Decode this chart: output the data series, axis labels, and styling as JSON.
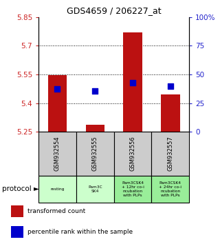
{
  "title": "GDS4659 / 206227_at",
  "samples": [
    "GSM932554",
    "GSM932555",
    "GSM932556",
    "GSM932557"
  ],
  "transformed_counts": [
    5.548,
    5.285,
    5.77,
    5.445
  ],
  "percentile_ranks": [
    5.475,
    5.465,
    5.505,
    5.49
  ],
  "bar_base": 5.25,
  "ylim": [
    5.25,
    5.85
  ],
  "yticks_left": [
    5.25,
    5.4,
    5.55,
    5.7,
    5.85
  ],
  "yticks_right": [
    0,
    25,
    50,
    75,
    100
  ],
  "hlines": [
    5.4,
    5.55,
    5.7
  ],
  "protocol_labels": [
    "resting",
    "Pam3C\nSK4",
    "Pam3CSK4\n+ 12hr co-i\nncubation\nwith PLPs",
    "Pam3CSK4\n+ 24hr co-i\nncubation\nwith PLPs"
  ],
  "protocol_colors": [
    "#ccffcc",
    "#ccffcc",
    "#99ee99",
    "#99ee99"
  ],
  "sample_box_color": "#cccccc",
  "bar_color": "#bb1111",
  "dot_color": "#0000cc",
  "bar_width": 0.5,
  "dot_size": 30,
  "left_tick_color": "#cc2222",
  "right_tick_color": "#2222cc",
  "legend_square_red": "#bb1111",
  "legend_square_blue": "#0000cc"
}
